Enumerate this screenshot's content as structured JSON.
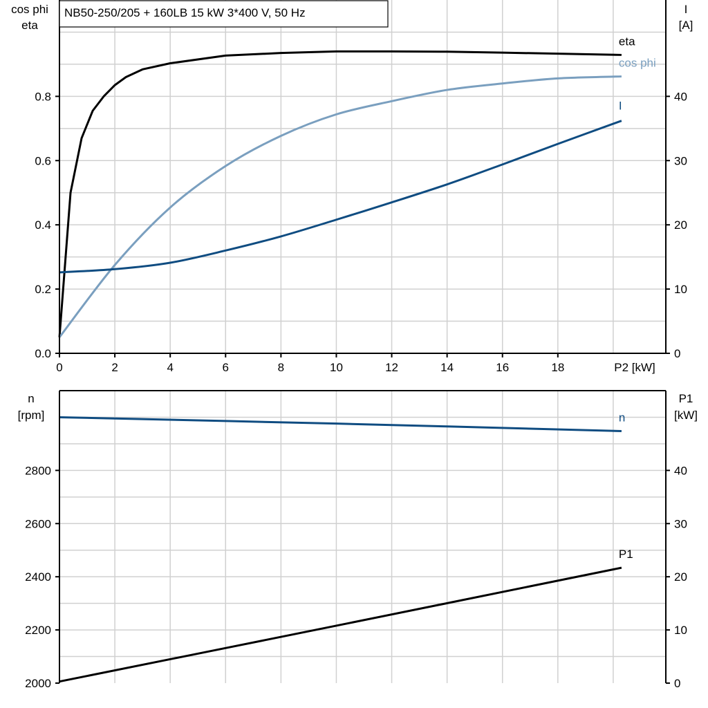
{
  "title": "NB50-250/205 + 160LB   15 kW   3*400 V, 50 Hz",
  "colors": {
    "eta": "#000000",
    "cos_phi": "#7a9fbf",
    "I": "#0f4c81",
    "n": "#0f4c81",
    "P1": "#000000",
    "grid": "#d0d0d0"
  },
  "chart_data": [
    {
      "type": "line",
      "xlabel": "P2 [kW]",
      "ylabel_left": [
        "cos phi",
        "eta"
      ],
      "ylabel_right": [
        "I",
        "[A]"
      ],
      "xlim": [
        0,
        21.9
      ],
      "ylim_left": [
        0,
        1.1
      ],
      "ylim_right": [
        0,
        55
      ],
      "xticks": [
        0,
        2,
        4,
        6,
        8,
        10,
        12,
        14,
        16,
        18
      ],
      "xtick_labels": [
        "0",
        "2",
        "4",
        "6",
        "8",
        "10",
        "12",
        "14",
        "16",
        "18"
      ],
      "yticks_left": [
        "0.0",
        "0.2",
        "0.4",
        "0.6",
        "0.8"
      ],
      "yticks_right": [
        "0",
        "10",
        "20",
        "30",
        "40"
      ],
      "grid": true,
      "series": [
        {
          "name": "eta",
          "axis": "left",
          "color": "#000000",
          "x": [
            0,
            0.4,
            0.8,
            1.2,
            1.6,
            2,
            2.4,
            3,
            4,
            6,
            8,
            10,
            12,
            14,
            16,
            18,
            20.3
          ],
          "y": [
            0.05,
            0.5,
            0.67,
            0.755,
            0.8,
            0.835,
            0.86,
            0.884,
            0.903,
            0.927,
            0.935,
            0.94,
            0.94,
            0.939,
            0.936,
            0.933,
            0.929
          ]
        },
        {
          "name": "cos phi",
          "axis": "left",
          "color": "#7a9fbf",
          "x": [
            0,
            2,
            4,
            6,
            8,
            10,
            12,
            14,
            16,
            18,
            20.3
          ],
          "y": [
            0.05,
            0.275,
            0.454,
            0.583,
            0.677,
            0.744,
            0.785,
            0.82,
            0.84,
            0.856,
            0.862
          ]
        },
        {
          "name": "I",
          "axis": "right",
          "color": "#0f4c81",
          "x": [
            0,
            2,
            4,
            6,
            8,
            10,
            12,
            14,
            16,
            18,
            20.3
          ],
          "y": [
            12.6,
            13.1,
            14.1,
            16.0,
            18.2,
            20.8,
            23.5,
            26.3,
            29.4,
            32.6,
            36.2
          ]
        }
      ]
    },
    {
      "type": "line",
      "ylabel_left": [
        "n",
        "[rpm]"
      ],
      "ylabel_right": [
        "P1",
        "[kW]"
      ],
      "xlim": [
        0,
        21.9
      ],
      "ylim_left": [
        2000,
        3100
      ],
      "ylim_right": [
        0,
        55
      ],
      "yticks_left": [
        "2000",
        "2200",
        "2400",
        "2600",
        "2800"
      ],
      "yticks_right": [
        "0",
        "10",
        "20",
        "30",
        "40"
      ],
      "grid": true,
      "series": [
        {
          "name": "n",
          "axis": "left",
          "color": "#0f4c81",
          "x": [
            0,
            10,
            20.3
          ],
          "y": [
            3000,
            2976,
            2948
          ]
        },
        {
          "name": "P1",
          "axis": "right",
          "color": "#000000",
          "x": [
            0,
            10,
            20.3
          ],
          "y": [
            0.3,
            10.8,
            21.7
          ]
        }
      ]
    }
  ]
}
